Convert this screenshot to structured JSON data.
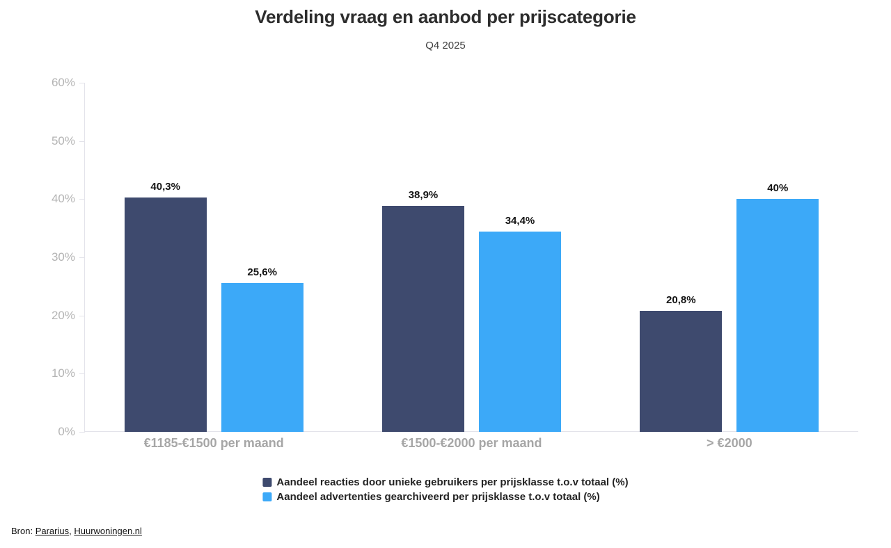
{
  "chart_data": {
    "type": "bar",
    "title": "Verdeling vraag en aanbod per prijscategorie",
    "subtitle": "Q4 2025",
    "categories": [
      "€1185-€1500 per maand",
      "€1500-€2000 per maand",
      "> €2000"
    ],
    "series": [
      {
        "name": "Aandeel reacties door unieke gebruikers per prijsklasse t.o.v totaal (%)",
        "color": "#3E4A6E",
        "values": [
          40.3,
          38.9,
          20.8
        ],
        "value_labels": [
          "40,3%",
          "38,9%",
          "20,8%"
        ]
      },
      {
        "name": "Aandeel advertenties gearchiveerd per prijsklasse t.o.v totaal (%)",
        "color": "#3CA9F8",
        "values": [
          25.6,
          34.4,
          40
        ],
        "value_labels": [
          "25,6%",
          "34,4%",
          "40%"
        ]
      }
    ],
    "ylim": [
      0,
      60
    ],
    "ytick_labels": [
      "0%",
      "10%",
      "20%",
      "30%",
      "40%",
      "50%",
      "60%"
    ],
    "grid": false,
    "legend_position": "bottom-center"
  },
  "source": {
    "prefix": "Bron:",
    "links": [
      "Pararius",
      "Huurwoningen.nl"
    ],
    "separator": ", "
  }
}
